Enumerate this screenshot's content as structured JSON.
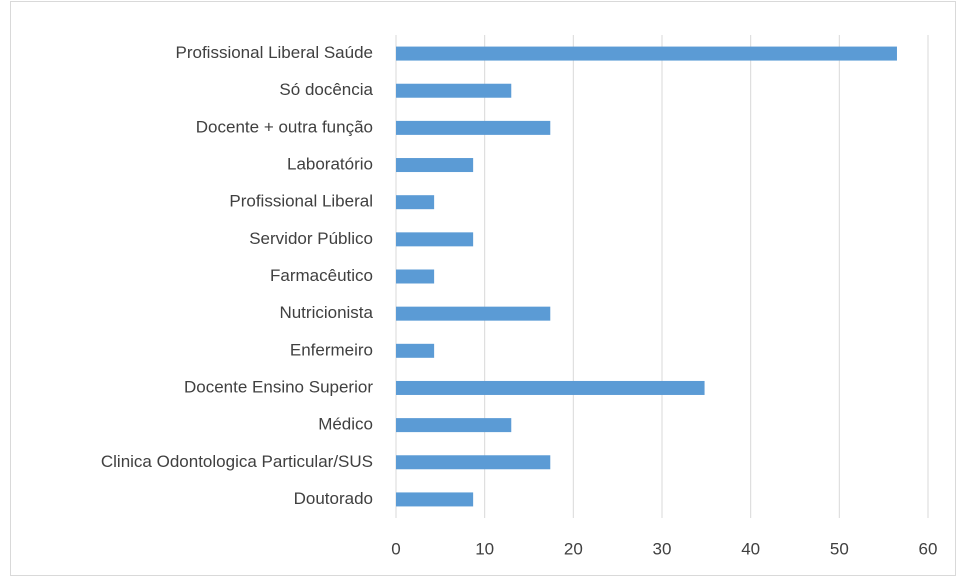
{
  "chart_data": {
    "type": "barh",
    "categories": [
      "Profissional Liberal Saúde",
      "Só docência",
      "Docente + outra função",
      "Laboratório",
      "Profissional Liberal",
      "Servidor Público",
      "Farmacêutico",
      "Nutricionista",
      "Enfermeiro",
      "Docente Ensino Superior",
      "Médico",
      "Clinica Odontologica Particular/SUS",
      "Doutorado"
    ],
    "values": [
      56.5,
      13,
      17.4,
      8.7,
      4.3,
      8.7,
      4.3,
      17.4,
      4.3,
      34.8,
      13,
      17.4,
      8.7
    ],
    "color": "#5b9bd5",
    "xlim": [
      0,
      60
    ],
    "xticks": [
      0,
      10,
      20,
      30,
      40,
      50,
      60
    ],
    "grid": true
  }
}
